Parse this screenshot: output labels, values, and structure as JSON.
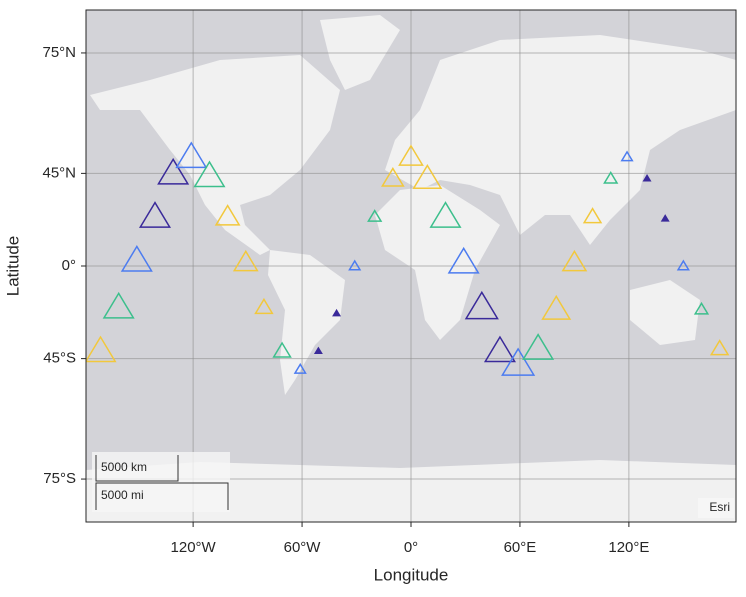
{
  "chart_data": {
    "type": "geoscatter",
    "xlabel": "Longitude",
    "ylabel": "Latitude",
    "projection": "mercator",
    "xlim": [
      -179,
      179
    ],
    "ylim": [
      -80,
      80
    ],
    "xticks": [
      {
        "value": -120,
        "label": "120°W"
      },
      {
        "value": -60,
        "label": "60°W"
      },
      {
        "value": 0,
        "label": "0°"
      },
      {
        "value": 60,
        "label": "60°E"
      },
      {
        "value": 120,
        "label": "120°E"
      }
    ],
    "yticks": [
      {
        "value": -75,
        "label": "75°S"
      },
      {
        "value": -45,
        "label": "45°S"
      },
      {
        "value": 0,
        "label": "0°"
      },
      {
        "value": 45,
        "label": "45°N"
      },
      {
        "value": 75,
        "label": "75°N"
      }
    ],
    "grid": true,
    "marker": "triangle",
    "lon": [
      -171,
      -161,
      -151,
      -141,
      -131,
      -121,
      -111,
      -101,
      -91,
      -81,
      -71,
      -61,
      -51,
      -41,
      -31,
      -20,
      -10,
      0,
      9,
      19,
      29,
      39,
      49,
      59,
      70,
      80,
      90,
      100,
      110,
      119,
      130,
      140,
      150,
      160,
      170
    ],
    "lat": [
      -42,
      -22,
      3,
      26,
      45,
      51,
      44,
      26,
      2,
      -22,
      -42,
      -49,
      -42,
      -25,
      0,
      26,
      43,
      51,
      43,
      26,
      2,
      -22,
      -42,
      -47,
      -41,
      -23,
      2,
      26,
      43,
      51,
      43,
      25,
      0,
      -23,
      -41
    ],
    "sizes": [
      14,
      14,
      14,
      14,
      14,
      14,
      14,
      11,
      11,
      8,
      8,
      5,
      3,
      3,
      5,
      6,
      10,
      11,
      13,
      14,
      14,
      15,
      14,
      15,
      14,
      13,
      11,
      8,
      6,
      5,
      3,
      3,
      5,
      6,
      8
    ],
    "colors": [
      "#f2c83c",
      "#3cbf8c",
      "#4c7cf0",
      "#3a2a9a",
      "#3a2a9a",
      "#4c7cf0",
      "#3cbf8c",
      "#f2c83c",
      "#f2c83c",
      "#f2c83c",
      "#3cbf8c",
      "#4c7cf0",
      "#3a2a9a",
      "#3a2a9a",
      "#4c7cf0",
      "#3cbf8c",
      "#f2c83c",
      "#f2c83c",
      "#f2c83c",
      "#3cbf8c",
      "#4c7cf0",
      "#3a2a9a",
      "#3a2a9a",
      "#4c7cf0",
      "#3cbf8c",
      "#f2c83c",
      "#f2c83c",
      "#f2c83c",
      "#3cbf8c",
      "#4c7cf0",
      "#3a2a9a",
      "#3a2a9a",
      "#4c7cf0",
      "#3cbf8c",
      "#f2c83c"
    ],
    "scalebar": [
      "5000 km",
      "5000 mi"
    ],
    "attribution": "Esri"
  }
}
